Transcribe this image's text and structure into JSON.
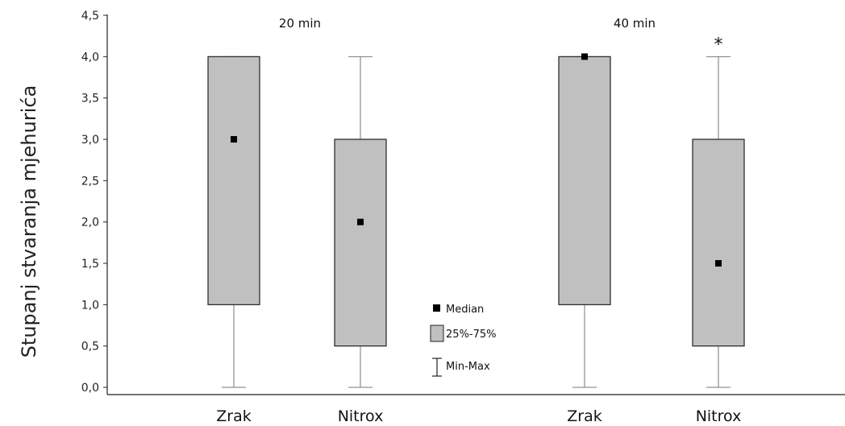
{
  "chart_data": {
    "type": "box",
    "ylabel": "Stupanj stvaranja mjehurića",
    "ylim": [
      0,
      4.5
    ],
    "yticks": [
      "0,0",
      "0,5",
      "1,0",
      "1,5",
      "2,0",
      "2,5",
      "3,0",
      "3,5",
      "4,0",
      "4,5"
    ],
    "groups": [
      {
        "label": "20 min",
        "boxes": [
          {
            "category": "Zrak",
            "min": 0,
            "q1": 1.0,
            "median": 3.0,
            "q3": 4.0,
            "max": 4.0,
            "annotation": ""
          },
          {
            "category": "Nitrox",
            "min": 0,
            "q1": 0.5,
            "median": 2.0,
            "q3": 3.0,
            "max": 4.0,
            "annotation": ""
          }
        ]
      },
      {
        "label": "40 min",
        "boxes": [
          {
            "category": "Zrak",
            "min": 0,
            "q1": 1.0,
            "median": 4.0,
            "q3": 4.0,
            "max": 4.0,
            "annotation": ""
          },
          {
            "category": "Nitrox",
            "min": 0,
            "q1": 0.5,
            "median": 1.5,
            "q3": 3.0,
            "max": 4.0,
            "annotation": "*"
          }
        ]
      }
    ],
    "legend": {
      "median": "Median",
      "box": "25%-75%",
      "whisker": "Min-Max"
    },
    "colors": {
      "box_fill": "#c0c0c0",
      "box_stroke": "#222222",
      "whisker": "#777777",
      "median": "#000000"
    }
  }
}
